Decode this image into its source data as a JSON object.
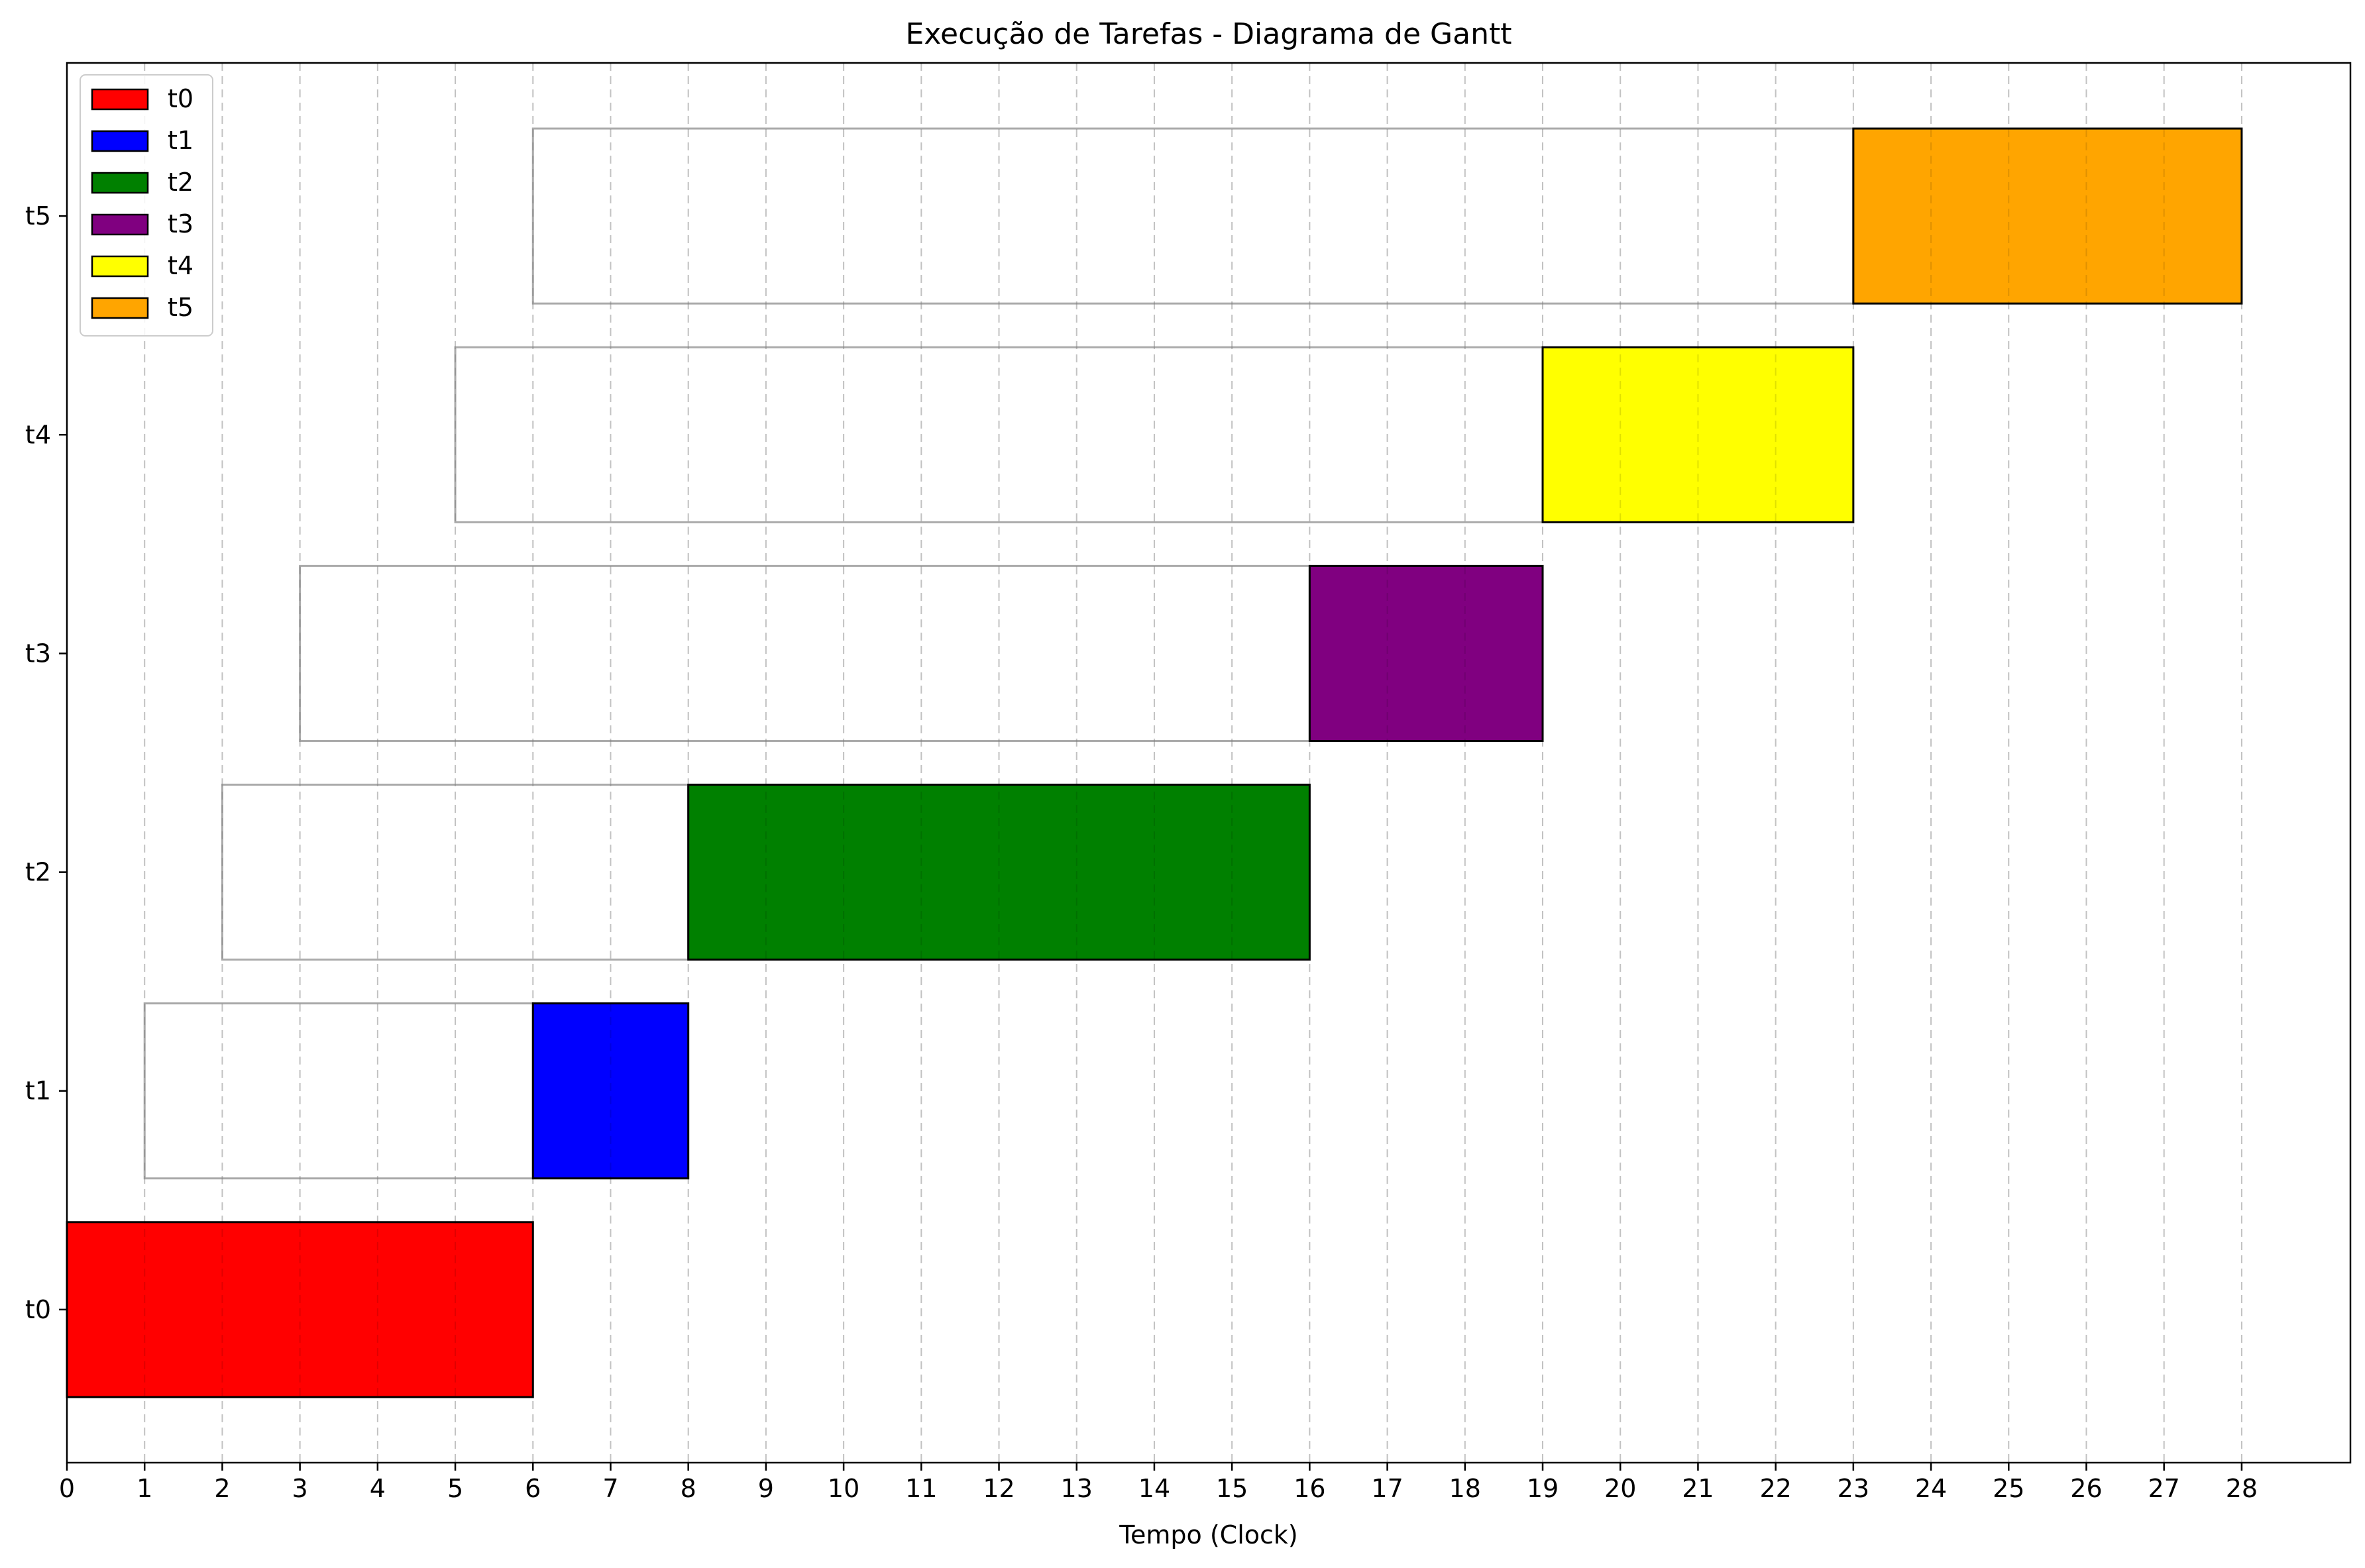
{
  "chart_data": {
    "type": "bar",
    "orientation": "horizontal",
    "title": "Execução de Tarefas - Diagrama de Gantt",
    "xlabel": "Tempo (Clock)",
    "ylabel": "",
    "xlim": [
      0,
      29.4
    ],
    "ylim": [
      -0.7,
      5.7
    ],
    "x_ticks": [
      0,
      1,
      2,
      3,
      4,
      5,
      6,
      7,
      8,
      9,
      10,
      11,
      12,
      13,
      14,
      15,
      16,
      17,
      18,
      19,
      20,
      21,
      22,
      23,
      24,
      25,
      26,
      27,
      28
    ],
    "y_categories": [
      "t0",
      "t1",
      "t2",
      "t3",
      "t4",
      "t5"
    ],
    "grid": {
      "x": true,
      "y": false,
      "style": "dashed"
    },
    "legend": {
      "position": "top-left",
      "entries": [
        "t0",
        "t1",
        "t2",
        "t3",
        "t4",
        "t5"
      ]
    },
    "tasks": [
      {
        "name": "t0",
        "arrival": 0,
        "start": 0,
        "end": 6,
        "color": "#ff0000"
      },
      {
        "name": "t1",
        "arrival": 1,
        "start": 6,
        "end": 8,
        "color": "#0000ff"
      },
      {
        "name": "t2",
        "arrival": 2,
        "start": 8,
        "end": 16,
        "color": "#008000"
      },
      {
        "name": "t3",
        "arrival": 3,
        "start": 16,
        "end": 19,
        "color": "#800080"
      },
      {
        "name": "t4",
        "arrival": 5,
        "start": 19,
        "end": 23,
        "color": "#ffff00"
      },
      {
        "name": "t5",
        "arrival": 6,
        "start": 23,
        "end": 28,
        "color": "#ffa500"
      }
    ]
  }
}
